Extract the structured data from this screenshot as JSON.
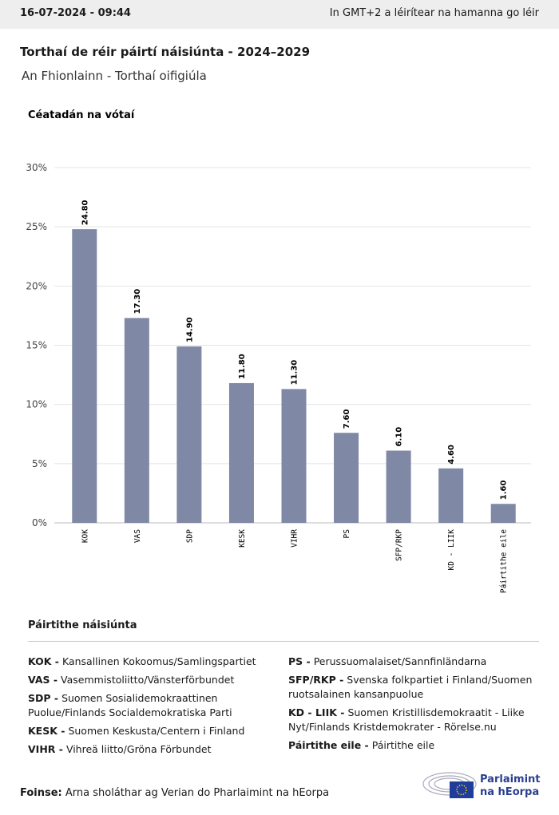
{
  "header": {
    "date": "16-07-2024 - 09:44",
    "note": "In GMT+2 a léirítear na hamanna go léir"
  },
  "chart_data": {
    "type": "bar",
    "title": "Torthaí de réir páirtí náisiúnta - 2024–2029",
    "subtitle": "An Fhionlainn - Torthaí oifigiúla",
    "y_label": "Céatadán na vótaí",
    "categories": [
      "KOK",
      "VAS",
      "SDP",
      "KESK",
      "VIHR",
      "PS",
      "SFP/RKP",
      "KD - LIIK",
      "Páirtithe eile"
    ],
    "values": [
      24.8,
      17.3,
      14.9,
      11.8,
      11.3,
      7.6,
      6.1,
      4.6,
      1.6
    ],
    "value_labels": [
      "24.80",
      "17.30",
      "14.90",
      "11.80",
      "11.30",
      "7.60",
      "6.10",
      "4.60",
      "1.60"
    ],
    "color": "#7f88a4",
    "ylim": [
      0,
      30
    ],
    "yticks": [
      {
        "value": 0,
        "label": "0%"
      },
      {
        "value": 5,
        "label": "5%"
      },
      {
        "value": 10,
        "label": "10%"
      },
      {
        "value": 15,
        "label": "15%"
      },
      {
        "value": 20,
        "label": "20%"
      },
      {
        "value": 25,
        "label": "25%"
      },
      {
        "value": 30,
        "label": "30%"
      }
    ],
    "grid": true
  },
  "parties": {
    "title": "Páirtithe náisiúnta",
    "left": [
      {
        "abbr": "KOK -",
        "name": "Kansallinen Kokoomus/Samlingspartiet"
      },
      {
        "abbr": "VAS -",
        "name": "Vasemmistoliitto/Vänsterförbundet"
      },
      {
        "abbr": "SDP -",
        "name": "Suomen Sosialidemokraattinen Puolue/Finlands Socialdemokratiska Parti"
      },
      {
        "abbr": "KESK -",
        "name": "Suomen Keskusta/Centern i Finland"
      },
      {
        "abbr": "VIHR -",
        "name": "Vihreä liitto/Gröna Förbundet"
      }
    ],
    "right": [
      {
        "abbr": "PS -",
        "name": "Perussuomalaiset/Sannfinländarna"
      },
      {
        "abbr": "SFP/RKP -",
        "name": "Svenska folkpartiet i Finland/Suomen ruotsalainen kansanpuolue"
      },
      {
        "abbr": "KD - LIIK -",
        "name": "Suomen Kristillisdemokraatit - Liike Nyt/Finlands Kristdemokrater - Rörelse.nu"
      },
      {
        "abbr": "Páirtithe eile -",
        "name": "Páirtithe eile"
      }
    ]
  },
  "source": {
    "label": "Foinse:",
    "text": "Arna sholáthar ag Verian do Pharlaimint na hEorpa"
  },
  "logo": {
    "line1": "Parlaimint",
    "line2": "na hEorpa"
  }
}
